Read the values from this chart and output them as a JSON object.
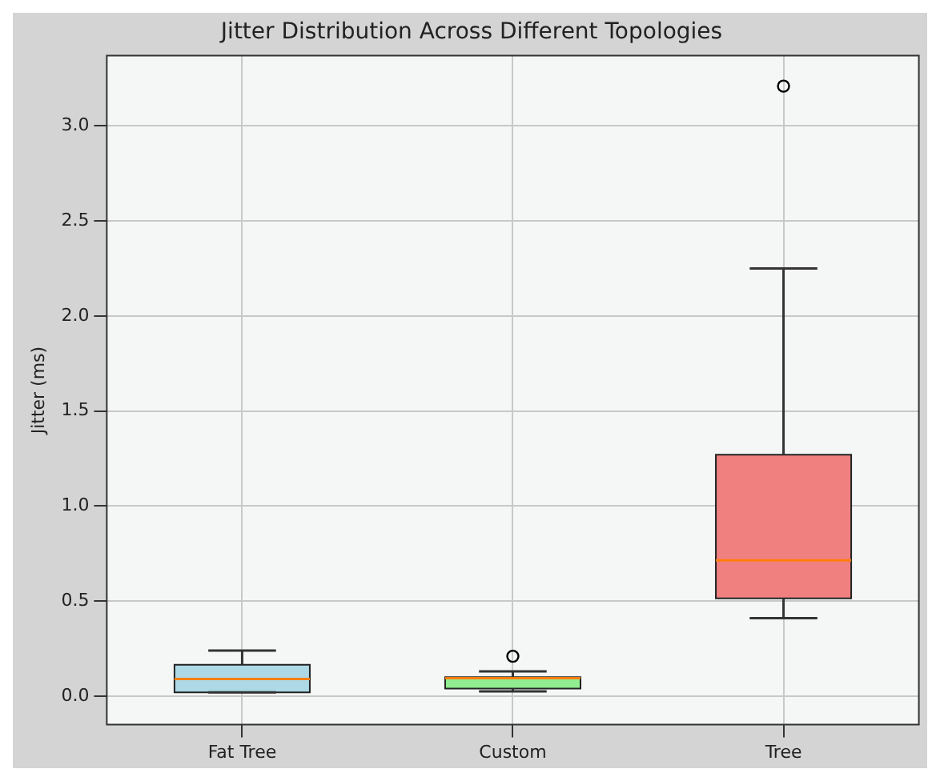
{
  "chart_data": {
    "type": "box",
    "title": "Jitter Distribution Across Different Topologies",
    "ylabel": "Jitter (ms)",
    "categories": [
      "Fat Tree",
      "Custom",
      "Tree"
    ],
    "colors": [
      "#add8e6",
      "#90ee90",
      "#f08080"
    ],
    "boxes": [
      {
        "low": 0.02,
        "q1": 0.02,
        "median": 0.09,
        "q3": 0.165,
        "high": 0.24
      },
      {
        "low": 0.025,
        "q1": 0.04,
        "median": 0.095,
        "q3": 0.1,
        "high": 0.13,
        "outliers": [
          0.21
        ]
      },
      {
        "low": 0.41,
        "q1": 0.515,
        "median": 0.715,
        "q3": 1.27,
        "high": 2.25,
        "outliers": [
          3.21
        ]
      }
    ],
    "ylim": [
      -0.15,
      3.37
    ],
    "yticks": [
      {
        "value": 0,
        "label": "0.0"
      },
      {
        "value": 0.5,
        "label": "0.5"
      },
      {
        "value": 1,
        "label": "1.0"
      },
      {
        "value": 1.5,
        "label": "1.5"
      },
      {
        "value": 2,
        "label": "2.0"
      },
      {
        "value": 2.5,
        "label": "2.5"
      },
      {
        "value": 3,
        "label": "3.0"
      }
    ],
    "grid": true
  }
}
